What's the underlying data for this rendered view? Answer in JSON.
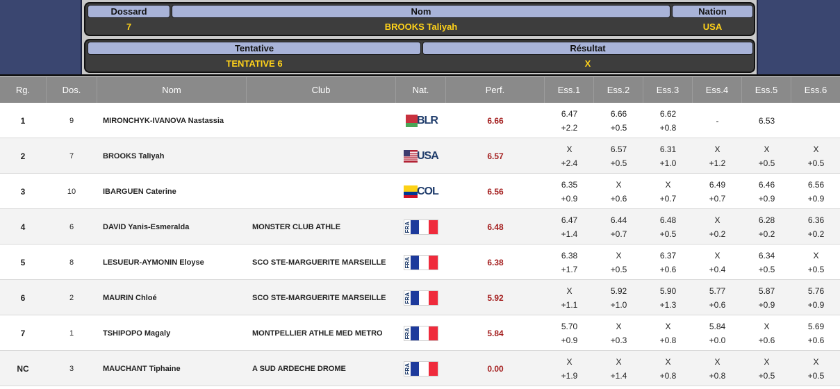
{
  "header": {
    "panel1": {
      "labels": {
        "dossard": "Dossard",
        "nom": "Nom",
        "nation": "Nation"
      },
      "values": {
        "dossard": "7",
        "nom": "BROOKS Taliyah",
        "nation": "USA"
      }
    },
    "panel2": {
      "labels": {
        "tentative": "Tentative",
        "resultat": "Résultat"
      },
      "values": {
        "tentative": "TENTATIVE 6",
        "resultat": "X"
      }
    }
  },
  "table": {
    "columns": [
      "Rg.",
      "Dos.",
      "Nom",
      "Club",
      "Nat.",
      "Perf.",
      "Ess.1",
      "Ess.2",
      "Ess.3",
      "Ess.4",
      "Ess.5",
      "Ess.6"
    ],
    "rows": [
      {
        "rank": "1",
        "dos": "9",
        "name": "MIRONCHYK-IVANOVA Nastassia",
        "club": "",
        "nat": "BLR",
        "perf": "6.66",
        "attempts": [
          [
            "6.47",
            "+2.2"
          ],
          [
            "6.66",
            "+0.5"
          ],
          [
            "6.62",
            "+0.8"
          ],
          [
            "-",
            ""
          ],
          [
            "6.53",
            ""
          ],
          [
            "",
            ""
          ]
        ]
      },
      {
        "rank": "2",
        "dos": "7",
        "name": "BROOKS Taliyah",
        "club": "",
        "nat": "USA",
        "perf": "6.57",
        "attempts": [
          [
            "X",
            "+2.4"
          ],
          [
            "6.57",
            "+0.5"
          ],
          [
            "6.31",
            "+1.0"
          ],
          [
            "X",
            "+1.2"
          ],
          [
            "X",
            "+0.5"
          ],
          [
            "X",
            "+0.5"
          ]
        ]
      },
      {
        "rank": "3",
        "dos": "10",
        "name": "IBARGUEN Caterine",
        "club": "",
        "nat": "COL",
        "perf": "6.56",
        "attempts": [
          [
            "6.35",
            "+0.9"
          ],
          [
            "X",
            "+0.6"
          ],
          [
            "X",
            "+0.7"
          ],
          [
            "6.49",
            "+0.7"
          ],
          [
            "6.46",
            "+0.9"
          ],
          [
            "6.56",
            "+0.9"
          ]
        ]
      },
      {
        "rank": "4",
        "dos": "6",
        "name": "DAVID Yanis-Esmeralda",
        "club": "MONSTER CLUB ATHLE",
        "nat": "FRA",
        "perf": "6.48",
        "attempts": [
          [
            "6.47",
            "+1.4"
          ],
          [
            "6.44",
            "+0.7"
          ],
          [
            "6.48",
            "+0.5"
          ],
          [
            "X",
            "+0.2"
          ],
          [
            "6.28",
            "+0.2"
          ],
          [
            "6.36",
            "+0.2"
          ]
        ]
      },
      {
        "rank": "5",
        "dos": "8",
        "name": "LESUEUR-AYMONIN Eloyse",
        "club": "SCO STE-MARGUERITE MARSEILLE",
        "nat": "FRA",
        "perf": "6.38",
        "attempts": [
          [
            "6.38",
            "+1.7"
          ],
          [
            "X",
            "+0.5"
          ],
          [
            "6.37",
            "+0.6"
          ],
          [
            "X",
            "+0.4"
          ],
          [
            "6.34",
            "+0.5"
          ],
          [
            "X",
            "+0.5"
          ]
        ]
      },
      {
        "rank": "6",
        "dos": "2",
        "name": "MAURIN Chloé",
        "club": "SCO STE-MARGUERITE MARSEILLE",
        "nat": "FRA",
        "perf": "5.92",
        "attempts": [
          [
            "X",
            "+1.1"
          ],
          [
            "5.92",
            "+1.0"
          ],
          [
            "5.90",
            "+1.3"
          ],
          [
            "5.77",
            "+0.6"
          ],
          [
            "5.87",
            "+0.9"
          ],
          [
            "5.76",
            "+0.9"
          ]
        ]
      },
      {
        "rank": "7",
        "dos": "1",
        "name": "TSHIPOPO Magaly",
        "club": "MONTPELLIER ATHLE MED METRO",
        "nat": "FRA",
        "perf": "5.84",
        "attempts": [
          [
            "5.70",
            "+0.9"
          ],
          [
            "X",
            "+0.3"
          ],
          [
            "X",
            "+0.8"
          ],
          [
            "5.84",
            "+0.0"
          ],
          [
            "X",
            "+0.6"
          ],
          [
            "5.69",
            "+0.6"
          ]
        ]
      },
      {
        "rank": "NC",
        "dos": "3",
        "name": "MAUCHANT Tiphaine",
        "club": "A SUD ARDECHE DROME",
        "nat": "FRA",
        "perf": "0.00",
        "attempts": [
          [
            "X",
            "+1.9"
          ],
          [
            "X",
            "+1.4"
          ],
          [
            "X",
            "+0.8"
          ],
          [
            "X",
            "+0.8"
          ],
          [
            "X",
            "+0.5"
          ],
          [
            "X",
            "+0.5"
          ]
        ]
      }
    ]
  },
  "colors": {
    "header_bg": "#333e64",
    "panel_label_bg": "#a8b3d8",
    "panel_value_text": "#ffd21a",
    "table_header_bg": "#8a8a8a",
    "perf_text": "#a41f1f",
    "fra_blue": "#1d3a9c",
    "fra_red": "#ef2b3c"
  }
}
